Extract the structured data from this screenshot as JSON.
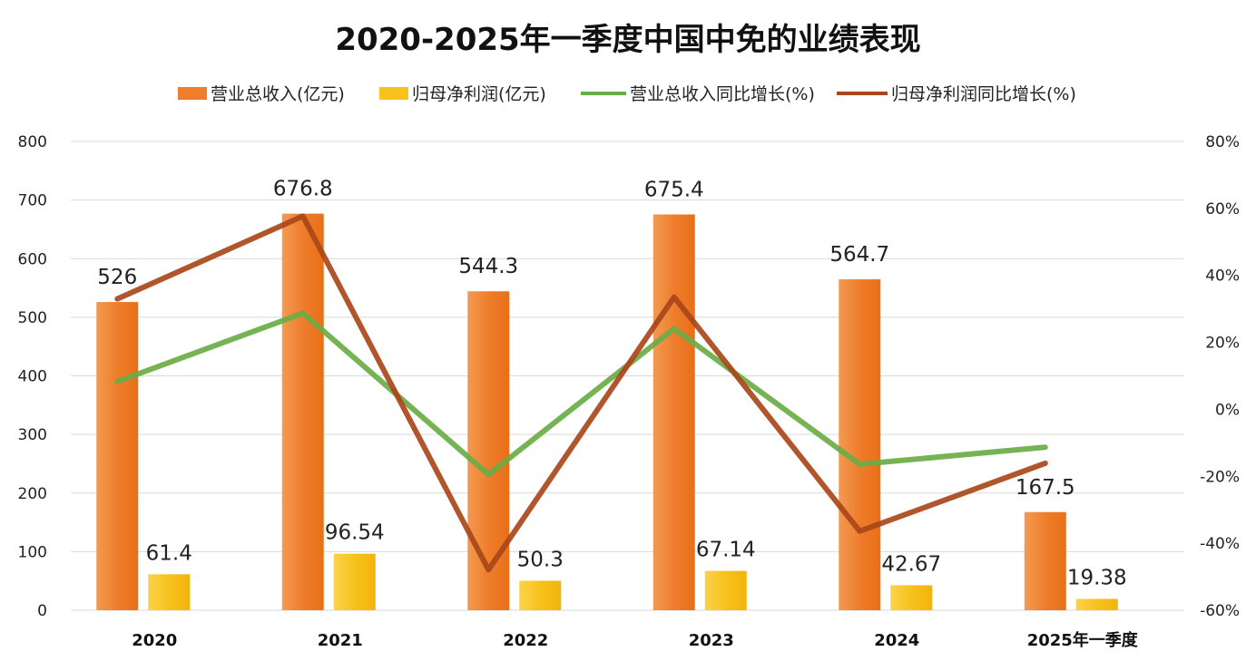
{
  "chart_data": {
    "type": "bar",
    "title": "2020-2025年一季度中国中免的业绩表现",
    "categories": [
      "2020",
      "2021",
      "2022",
      "2023",
      "2024",
      "2025年一季度"
    ],
    "series": [
      {
        "name": "营业总收入(亿元)",
        "kind": "bar",
        "axis": "left",
        "color": "#ee7d2c",
        "values": [
          526,
          676.8,
          544.3,
          675.4,
          564.7,
          167.5
        ],
        "labels": [
          "526",
          "676.8",
          "544.3",
          "675.4",
          "564.7",
          "167.5"
        ]
      },
      {
        "name": "归母净利润(亿元)",
        "kind": "bar",
        "axis": "left",
        "color": "#f7c21b",
        "values": [
          61.4,
          96.54,
          50.3,
          67.14,
          42.67,
          19.38
        ],
        "labels": [
          "61.4",
          "96.54",
          "50.3",
          "67.14",
          "42.67",
          "19.38"
        ]
      },
      {
        "name": "营业总收入同比增长(%)",
        "kind": "line",
        "axis": "right",
        "color": "#6aac45",
        "values": [
          8.3,
          28.7,
          -19.5,
          24.1,
          -16.4,
          -11.3
        ]
      },
      {
        "name": "归母净利润同比增长(%)",
        "kind": "line",
        "axis": "right",
        "color": "#a9461a",
        "values": [
          33.0,
          57.7,
          -47.9,
          33.5,
          -36.4,
          -16.1
        ]
      }
    ],
    "yleft": {
      "min": 0,
      "max": 800,
      "ticks": [
        "0",
        "100",
        "200",
        "300",
        "400",
        "500",
        "600",
        "700",
        "800"
      ]
    },
    "yright": {
      "min": -60,
      "max": 80,
      "ticks": [
        "-60%",
        "-40%",
        "-20%",
        "0%",
        "20%",
        "40%",
        "60%",
        "80%"
      ]
    },
    "legend_position": "top",
    "grid": true
  }
}
